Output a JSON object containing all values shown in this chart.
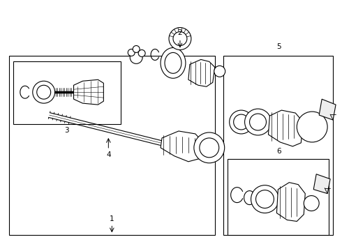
{
  "background_color": "#ffffff",
  "line_color": "#000000",
  "fig_width": 4.9,
  "fig_height": 3.6,
  "dpi": 100
}
